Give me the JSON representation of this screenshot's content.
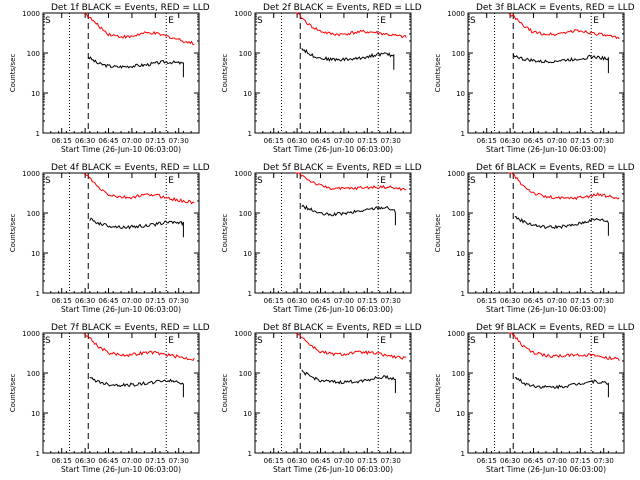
{
  "figure": {
    "background": "#ffffff",
    "axis_color": "#000000",
    "events_color": "#000000",
    "lld_color": "#ff0000"
  },
  "chart_data": [
    {
      "type": "line",
      "title": "Det 1f BLACK = Events, RED = LLD",
      "xlabel": "Start Time (26-Jun-10 06:03:00)",
      "ylabel": "Counts/sec",
      "yscale": "log",
      "ylim": [
        1,
        1000
      ],
      "xlim": [
        "06:03",
        "07:43"
      ],
      "x_ticks": [
        "06:15",
        "06:30",
        "06:45",
        "07:00",
        "07:15",
        "07:30"
      ],
      "y_ticks": [
        "1",
        "10",
        "100",
        "1000"
      ],
      "corner_marks": [
        "S",
        "E"
      ],
      "vertical_markers": {
        "dotted": [
          "06:20",
          "07:22"
        ],
        "dashed": [
          "06:32"
        ]
      },
      "series": [
        {
          "color": "#000000",
          "start": "06:32",
          "end": "07:33",
          "values": [
            80,
            55,
            48,
            45,
            46,
            48,
            50,
            55,
            60,
            58,
            55
          ]
        },
        {
          "color": "#ff0000",
          "start": "06:31",
          "end": "07:40",
          "values": [
            900,
            500,
            300,
            260,
            250,
            300,
            320,
            280,
            240,
            200,
            170
          ]
        }
      ]
    },
    {
      "type": "line",
      "title": "Det 2f BLACK = Events, RED = LLD",
      "xlabel": "Start Time (26-Jun-10 06:03:00)",
      "ylabel": "Counts/sec",
      "yscale": "log",
      "ylim": [
        1,
        1000
      ],
      "xlim": [
        "06:03",
        "07:43"
      ],
      "x_ticks": [
        "06:15",
        "06:30",
        "06:45",
        "07:00",
        "07:15",
        "07:30"
      ],
      "y_ticks": [
        "1",
        "10",
        "100",
        "1000"
      ],
      "corner_marks": [
        "S",
        "E"
      ],
      "vertical_markers": {
        "dotted": [
          "06:20",
          "07:22"
        ],
        "dashed": [
          "06:32"
        ]
      },
      "series": [
        {
          "color": "#000000",
          "start": "06:33",
          "end": "07:32",
          "values": [
            130,
            90,
            75,
            70,
            68,
            70,
            72,
            80,
            90,
            95,
            85
          ]
        },
        {
          "color": "#ff0000",
          "start": "06:31",
          "end": "07:40",
          "values": [
            900,
            500,
            350,
            300,
            290,
            320,
            340,
            330,
            300,
            270,
            250
          ]
        }
      ]
    },
    {
      "type": "line",
      "title": "Det 3f BLACK = Events, RED = LLD",
      "xlabel": "Start Time (26-Jun-10 06:03:00)",
      "ylabel": "Counts/sec",
      "yscale": "log",
      "ylim": [
        1,
        1000
      ],
      "xlim": [
        "06:03",
        "07:43"
      ],
      "x_ticks": [
        "06:15",
        "06:30",
        "06:45",
        "07:00",
        "07:15",
        "07:30"
      ],
      "y_ticks": [
        "1",
        "10",
        "100",
        "1000"
      ],
      "corner_marks": [
        "S",
        "E"
      ],
      "vertical_markers": {
        "dotted": [
          "06:20",
          "07:22"
        ],
        "dashed": [
          "06:32"
        ]
      },
      "series": [
        {
          "color": "#000000",
          "start": "06:32",
          "end": "07:33",
          "values": [
            90,
            70,
            65,
            60,
            62,
            65,
            68,
            72,
            80,
            78,
            70
          ]
        },
        {
          "color": "#ff0000",
          "start": "06:31",
          "end": "07:40",
          "values": [
            900,
            500,
            330,
            300,
            290,
            330,
            360,
            340,
            300,
            260,
            230
          ]
        }
      ]
    },
    {
      "type": "line",
      "title": "Det 4f BLACK = Events, RED = LLD",
      "xlabel": "Start Time (26-Jun-10 06:03:00)",
      "ylabel": "Counts/sec",
      "yscale": "log",
      "ylim": [
        1,
        1000
      ],
      "xlim": [
        "06:03",
        "07:43"
      ],
      "x_ticks": [
        "06:15",
        "06:30",
        "06:45",
        "07:00",
        "07:15",
        "07:30"
      ],
      "y_ticks": [
        "1",
        "10",
        "100",
        "1000"
      ],
      "corner_marks": [
        "S",
        "E"
      ],
      "vertical_markers": {
        "dotted": [
          "06:20",
          "07:22"
        ],
        "dashed": [
          "06:32"
        ]
      },
      "series": [
        {
          "color": "#000000",
          "start": "06:33",
          "end": "07:33",
          "values": [
            70,
            55,
            48,
            45,
            44,
            46,
            48,
            52,
            58,
            60,
            55
          ]
        },
        {
          "color": "#ff0000",
          "start": "06:31",
          "end": "07:40",
          "values": [
            900,
            450,
            290,
            250,
            240,
            270,
            290,
            260,
            220,
            200,
            180
          ]
        }
      ]
    },
    {
      "type": "line",
      "title": "Det 5f BLACK = Events, RED = LLD",
      "xlabel": "Start Time (26-Jun-10 06:03:00)",
      "ylabel": "Counts/sec",
      "yscale": "log",
      "ylim": [
        1,
        1000
      ],
      "xlim": [
        "06:03",
        "07:43"
      ],
      "x_ticks": [
        "06:15",
        "06:30",
        "06:45",
        "07:00",
        "07:15",
        "07:30"
      ],
      "y_ticks": [
        "1",
        "10",
        "100",
        "1000"
      ],
      "corner_marks": [
        "S",
        "E"
      ],
      "vertical_markers": {
        "dotted": [
          "06:20",
          "07:22"
        ],
        "dashed": [
          "06:32"
        ]
      },
      "series": [
        {
          "color": "#000000",
          "start": "06:33",
          "end": "07:33",
          "values": [
            150,
            120,
            95,
            90,
            95,
            100,
            110,
            120,
            135,
            140,
            110
          ]
        },
        {
          "color": "#ff0000",
          "start": "06:31",
          "end": "07:40",
          "values": [
            1000,
            650,
            480,
            420,
            400,
            410,
            430,
            440,
            450,
            420,
            380
          ]
        }
      ]
    },
    {
      "type": "line",
      "title": "Det 6f BLACK = Events, RED = LLD",
      "xlabel": "Start Time (26-Jun-10 06:03:00)",
      "ylabel": "Counts/sec",
      "yscale": "log",
      "ylim": [
        1,
        1000
      ],
      "xlim": [
        "06:03",
        "07:43"
      ],
      "x_ticks": [
        "06:15",
        "06:30",
        "06:45",
        "07:00",
        "07:15",
        "07:30"
      ],
      "y_ticks": [
        "1",
        "10",
        "100",
        "1000"
      ],
      "corner_marks": [
        "S",
        "E"
      ],
      "vertical_markers": {
        "dotted": [
          "06:20",
          "07:22"
        ],
        "dashed": [
          "06:32"
        ]
      },
      "series": [
        {
          "color": "#000000",
          "start": "06:33",
          "end": "07:33",
          "values": [
            80,
            60,
            50,
            45,
            44,
            46,
            48,
            55,
            65,
            70,
            60
          ]
        },
        {
          "color": "#ff0000",
          "start": "06:31",
          "end": "07:40",
          "values": [
            1000,
            500,
            320,
            260,
            240,
            230,
            240,
            260,
            290,
            260,
            230
          ]
        }
      ]
    },
    {
      "type": "line",
      "title": "Det 7f BLACK = Events, RED = LLD",
      "xlabel": "Start Time (26-Jun-10 06:03:00)",
      "ylabel": "Counts/sec",
      "yscale": "log",
      "ylim": [
        1,
        1000
      ],
      "xlim": [
        "06:03",
        "07:43"
      ],
      "x_ticks": [
        "06:15",
        "06:30",
        "06:45",
        "07:00",
        "07:15",
        "07:30"
      ],
      "y_ticks": [
        "1",
        "10",
        "100",
        "1000"
      ],
      "corner_marks": [
        "S",
        "E"
      ],
      "vertical_markers": {
        "dotted": [
          "06:20",
          "07:22"
        ],
        "dashed": [
          "06:32"
        ]
      },
      "series": [
        {
          "color": "#000000",
          "start": "06:33",
          "end": "07:33",
          "values": [
            75,
            60,
            52,
            50,
            50,
            52,
            55,
            60,
            65,
            62,
            55
          ]
        },
        {
          "color": "#ff0000",
          "start": "06:31",
          "end": "07:40",
          "values": [
            900,
            480,
            320,
            290,
            280,
            310,
            330,
            300,
            270,
            240,
            220
          ]
        }
      ]
    },
    {
      "type": "line",
      "title": "Det 8f BLACK = Events, RED = LLD",
      "xlabel": "Start Time (26-Jun-10 06:03:00)",
      "ylabel": "Counts/sec",
      "yscale": "log",
      "ylim": [
        1,
        1000
      ],
      "xlim": [
        "06:03",
        "07:43"
      ],
      "x_ticks": [
        "06:15",
        "06:30",
        "06:45",
        "07:00",
        "07:15",
        "07:30"
      ],
      "y_ticks": [
        "1",
        "10",
        "100",
        "1000"
      ],
      "corner_marks": [
        "S",
        "E"
      ],
      "vertical_markers": {
        "dotted": [
          "06:20",
          "07:22"
        ],
        "dashed": [
          "06:32"
        ]
      },
      "series": [
        {
          "color": "#000000",
          "start": "06:33",
          "end": "07:33",
          "values": [
            110,
            80,
            65,
            60,
            58,
            60,
            62,
            68,
            75,
            80,
            70
          ]
        },
        {
          "color": "#ff0000",
          "start": "06:31",
          "end": "07:40",
          "values": [
            950,
            520,
            340,
            300,
            290,
            320,
            330,
            310,
            280,
            250,
            230
          ]
        }
      ]
    },
    {
      "type": "line",
      "title": "Det 9f BLACK = Events, RED = LLD",
      "xlabel": "Start Time (26-Jun-10 06:03:00)",
      "ylabel": "Counts/sec",
      "yscale": "log",
      "ylim": [
        1,
        1000
      ],
      "xlim": [
        "06:03",
        "07:43"
      ],
      "x_ticks": [
        "06:15",
        "06:30",
        "06:45",
        "07:00",
        "07:15",
        "07:30"
      ],
      "y_ticks": [
        "1",
        "10",
        "100",
        "1000"
      ],
      "corner_marks": [
        "S",
        "E"
      ],
      "vertical_markers": {
        "dotted": [
          "06:20",
          "07:22"
        ],
        "dashed": [
          "06:32"
        ]
      },
      "series": [
        {
          "color": "#000000",
          "start": "06:33",
          "end": "07:33",
          "values": [
            80,
            55,
            48,
            45,
            44,
            46,
            50,
            55,
            62,
            60,
            55
          ]
        },
        {
          "color": "#ff0000",
          "start": "06:31",
          "end": "07:40",
          "values": [
            1000,
            480,
            320,
            280,
            260,
            270,
            290,
            280,
            260,
            240,
            220
          ]
        }
      ]
    }
  ]
}
